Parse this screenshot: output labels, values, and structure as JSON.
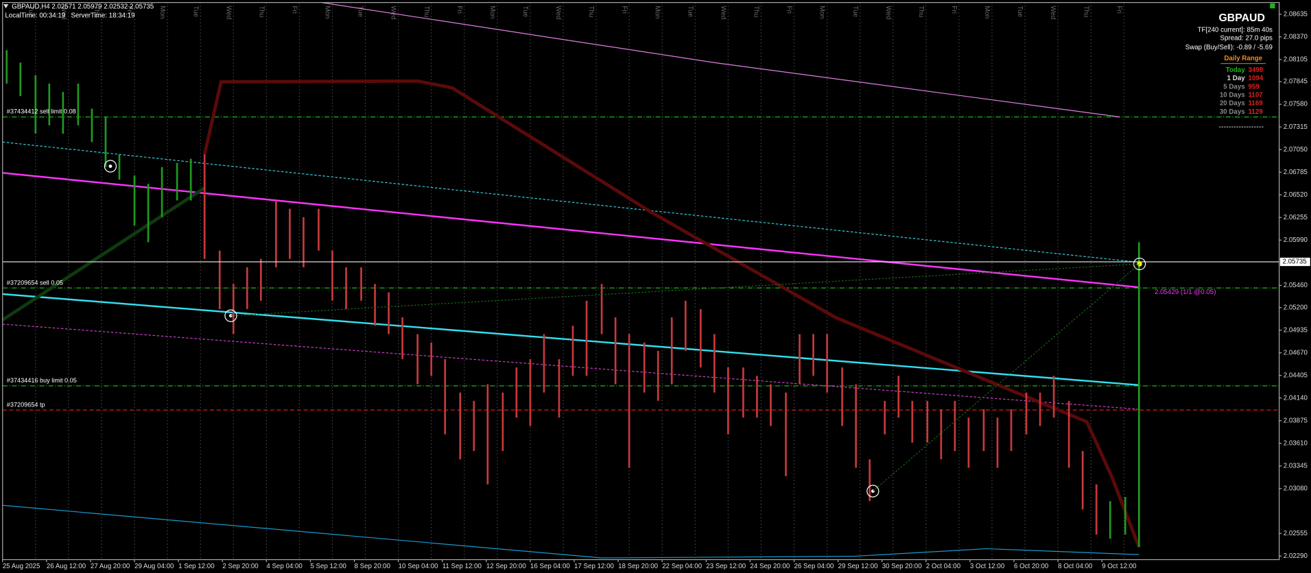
{
  "header": {
    "symbol_line": "GBPAUD,H4 2.02571 2.05979 2.02532 2.05735",
    "time_line": "LocalTime: 00:34:19   ServerTime: 18:34:19"
  },
  "info_panel": {
    "symbol": "GBPAUD",
    "timeframe": "TF[240 current]: 85m 40s",
    "spread": "Spread: 27.0 pips",
    "swap": "Swap (Buy/Sell): -0.89 / -5.69",
    "range_title": "Daily Range",
    "ranges": [
      {
        "label": "Today",
        "value": 3498
      },
      {
        "label": "1 Day",
        "value": 1094
      },
      {
        "label": "5 Days",
        "value": 959
      },
      {
        "label": "10 Days",
        "value": 1107
      },
      {
        "label": "20 Days",
        "value": 1169
      },
      {
        "label": "30 Days",
        "value": 1129
      }
    ]
  },
  "chart_data": {
    "type": "ohlc",
    "xlim": [
      0,
      929
    ],
    "ylim": [
      2.02248,
      2.08772
    ],
    "xticks": [
      {
        "value": 0,
        "label": "25 Aug 2025"
      },
      {
        "value": 32,
        "label": "26 Aug 12:00"
      },
      {
        "value": 64,
        "label": "27 Aug 20:00"
      },
      {
        "value": 96,
        "label": "29 Aug 04:00"
      },
      {
        "value": 128,
        "label": "1 Sep 12:00"
      },
      {
        "value": 160,
        "label": "2 Sep 20:00"
      },
      {
        "value": 192,
        "label": "4 Sep 04:00"
      },
      {
        "value": 224,
        "label": "5 Sep 12:00"
      },
      {
        "value": 256,
        "label": "8 Sep 20:00"
      },
      {
        "value": 288,
        "label": "10 Sep 04:00"
      },
      {
        "value": 320,
        "label": "11 Sep 12:00"
      },
      {
        "value": 352,
        "label": "12 Sep 20:00"
      },
      {
        "value": 384,
        "label": "16 Sep 04:00"
      },
      {
        "value": 416,
        "label": "17 Sep 12:00"
      },
      {
        "value": 448,
        "label": "18 Sep 20:00"
      },
      {
        "value": 480,
        "label": "22 Sep 04:00"
      },
      {
        "value": 512,
        "label": "23 Sep 12:00"
      },
      {
        "value": 544,
        "label": "24 Sep 20:00"
      },
      {
        "value": 576,
        "label": "26 Sep 04:00"
      },
      {
        "value": 608,
        "label": "29 Sep 12:00"
      },
      {
        "value": 640,
        "label": "30 Sep 20:00"
      },
      {
        "value": 672,
        "label": "2 Oct 04:00"
      },
      {
        "value": 704,
        "label": "3 Oct 12:00"
      },
      {
        "value": 736,
        "label": "6 Oct 20:00"
      },
      {
        "value": 768,
        "label": "8 Oct 04:00"
      },
      {
        "value": 800,
        "label": "9 Oct 12:00"
      }
    ],
    "yticks": [
      2.08635,
      {
        "value": 2.0837,
        "label": "2.08370"
      },
      2.08105,
      2.07845,
      {
        "value": 2.0758,
        "label": "2.07580"
      },
      2.07315,
      {
        "value": 2.0705,
        "label": "2.07050"
      },
      2.06785,
      {
        "value": 2.0652,
        "label": "2.06520"
      },
      2.06255,
      {
        "value": 2.0599,
        "label": "2.05990"
      },
      {
        "value": 2.0546,
        "label": "2.05460"
      },
      {
        "value": 2.052,
        "label": "2.05200"
      },
      2.04935,
      {
        "value": 2.0467,
        "label": "2.04670"
      },
      2.04405,
      {
        "value": 2.0414,
        "label": "2.04140"
      },
      2.03875,
      {
        "value": 2.0361,
        "label": "2.03610"
      },
      2.03345,
      {
        "value": 2.0308,
        "label": "2.03080"
      },
      2.02555,
      {
        "value": 2.0229,
        "label": "2.02290"
      }
    ],
    "current_price": 2.05735,
    "day_separators": {
      "x": [
        24,
        48,
        72,
        96,
        120,
        144,
        168,
        192,
        216,
        240,
        264,
        288,
        312,
        336,
        360,
        384,
        408,
        432,
        456,
        480,
        504,
        528,
        552,
        576,
        600,
        624,
        648,
        672,
        696,
        720,
        744,
        768,
        792,
        816
      ],
      "labels": [
        "Tue",
        "Wed",
        "Thu",
        "Fri",
        "Mon",
        "Tue",
        "Wed",
        "Thu",
        "Fri",
        "Mon",
        "Tue",
        "Wed",
        "Thu",
        "Fri",
        "Mon",
        "Tue",
        "Wed",
        "Thu",
        "Fri",
        "Mon",
        "Tue",
        "Wed",
        "Thu",
        "Fri",
        "Mon",
        "Tue",
        "Wed",
        "Thu",
        "Fri",
        "Mon",
        "Tue",
        "Wed",
        "Thu",
        "Fri"
      ]
    },
    "series": [
      {
        "color": "#1f9a1f",
        "x": [
          3,
          13,
          24,
          34,
          44,
          55,
          65,
          75,
          85,
          96,
          106,
          116,
          127,
          137
        ],
        "high": [
          2.08214,
          2.08068,
          2.07921,
          2.07823,
          2.07725,
          2.07823,
          2.0753,
          2.07432,
          2.06992,
          2.06747,
          2.06649,
          2.06845,
          2.06894,
          2.06943
        ],
        "low": [
          2.07823,
          2.07676,
          2.07236,
          2.07334,
          2.07236,
          2.07334,
          2.07138,
          2.06845,
          2.06698,
          2.0616,
          2.05965,
          2.06258,
          2.06454,
          2.06454
        ]
      },
      {
        "color": "#c8393b",
        "x": [
          147,
          158,
          168,
          178,
          188,
          199,
          209,
          219,
          230,
          240,
          250,
          261,
          271,
          281,
          291,
          302,
          312,
          322,
          333,
          343,
          353,
          364,
          374,
          384,
          394,
          405,
          415,
          425,
          436,
          446,
          456,
          467,
          477,
          487,
          497,
          508,
          518,
          528,
          539,
          549,
          559,
          570,
          580,
          590,
          600,
          611,
          621,
          631,
          642,
          652,
          662,
          673,
          683,
          693,
          703,
          714,
          724,
          734,
          745,
          755,
          765,
          776,
          786,
          796
        ],
        "high": [
          2.06992,
          2.05867,
          2.05476,
          2.05671,
          2.05769,
          2.06454,
          2.06356,
          2.06258,
          2.06356,
          2.05867,
          2.05671,
          2.05671,
          2.05476,
          2.05378,
          2.05085,
          2.04889,
          2.04791,
          2.04596,
          2.04204,
          2.04107,
          2.04302,
          2.04204,
          2.04498,
          2.04596,
          2.04889,
          2.04596,
          2.04987,
          2.0528,
          2.05476,
          2.05085,
          2.04889,
          2.04791,
          2.04693,
          2.05085,
          2.0528,
          2.05182,
          2.04889,
          2.04498,
          2.04498,
          2.044,
          2.04302,
          2.04204,
          2.04889,
          2.04889,
          2.04889,
          2.04498,
          2.04302,
          2.03422,
          2.04107,
          2.044,
          2.04107,
          2.04107,
          2.04009,
          2.04107,
          2.03911,
          2.04009,
          2.03911,
          2.04009,
          2.04204,
          2.04204,
          2.044,
          2.04107,
          2.0352,
          2.03129
        ],
        "low": [
          2.05769,
          2.05182,
          2.04889,
          2.05182,
          2.0528,
          2.05671,
          2.05769,
          2.05671,
          2.05867,
          2.0528,
          2.05182,
          2.0528,
          2.04987,
          2.04889,
          2.04596,
          2.04302,
          2.044,
          2.03715,
          2.03422,
          2.0352,
          2.03129,
          2.0352,
          2.03911,
          2.03813,
          2.04204,
          2.03911,
          2.044,
          2.044,
          2.04889,
          2.04302,
          2.03324,
          2.04204,
          2.04107,
          2.04302,
          2.04693,
          2.04498,
          2.04204,
          2.03715,
          2.03911,
          2.03911,
          2.03813,
          2.03226,
          2.04302,
          2.044,
          2.04204,
          2.03813,
          2.03324,
          2.02933,
          2.03715,
          2.03911,
          2.03618,
          2.03618,
          2.03422,
          2.0352,
          2.03324,
          2.0352,
          2.03324,
          2.0352,
          2.03715,
          2.03813,
          2.03911,
          2.03324,
          2.02835,
          2.02542
        ]
      },
      {
        "color": "#1f9a1f",
        "x": [
          806,
          817,
          827
        ],
        "high": [
          2.02933,
          2.02982,
          2.05965
        ],
        "low": [
          2.02493,
          2.02542,
          2.02395
        ]
      }
    ],
    "lines": [
      {
        "color": "#ff33ff",
        "style": "thick",
        "x": [
          0,
          827
        ],
        "values": [
          2.06777,
          2.05437
        ]
      },
      {
        "color": "#33e0f0",
        "style": "thick",
        "x": [
          0,
          827
        ],
        "values": [
          2.05358,
          2.04292
        ]
      },
      {
        "color": "#33c8d8",
        "style": "dashed",
        "x": [
          0,
          827
        ],
        "values": [
          2.07138,
          2.0573
        ]
      },
      {
        "color": "#c040c0",
        "style": "dashed",
        "x": [
          0,
          827
        ],
        "values": [
          2.05006,
          2.04009
        ]
      },
      {
        "color": "#e080e0",
        "style": "thin",
        "x": [
          232,
          518,
          813
        ],
        "values": [
          2.08772,
          2.08068,
          2.07432
        ]
      },
      {
        "color": "#5a0a0a",
        "style": "heavy",
        "x": [
          147,
          159,
          302,
          327,
          473,
          606,
          789,
          807,
          827
        ],
        "values": [
          2.06992,
          2.07843,
          2.07852,
          2.07774,
          2.06307,
          2.05085,
          2.03862,
          2.03226,
          2.02395
        ]
      },
      {
        "color": "#0f3a0f",
        "style": "heavy",
        "x": [
          0,
          147
        ],
        "values": [
          2.05055,
          2.06601
        ]
      },
      {
        "color": "#1a9ad0",
        "style": "thin",
        "x": [
          0,
          436,
          620,
          716,
          827
        ],
        "values": [
          2.02884,
          2.02268,
          2.02288,
          2.02376,
          2.02307
        ]
      }
    ],
    "order_levels": [
      {
        "label": "#37434412 sell limit 0.08",
        "value": 2.07432,
        "color": "#1db31d"
      },
      {
        "label": "#37209654 sell 0.05",
        "value": 2.05429,
        "color": "#1db31d",
        "tag": "2.05429 (1/1 @0.05)"
      },
      {
        "label": "#37434416 buy limit 0.05",
        "value": 2.04283,
        "color": "#1db31d"
      },
      {
        "label": "#37209654 tp",
        "value": 2.04,
        "color": "#d02020"
      }
    ]
  }
}
